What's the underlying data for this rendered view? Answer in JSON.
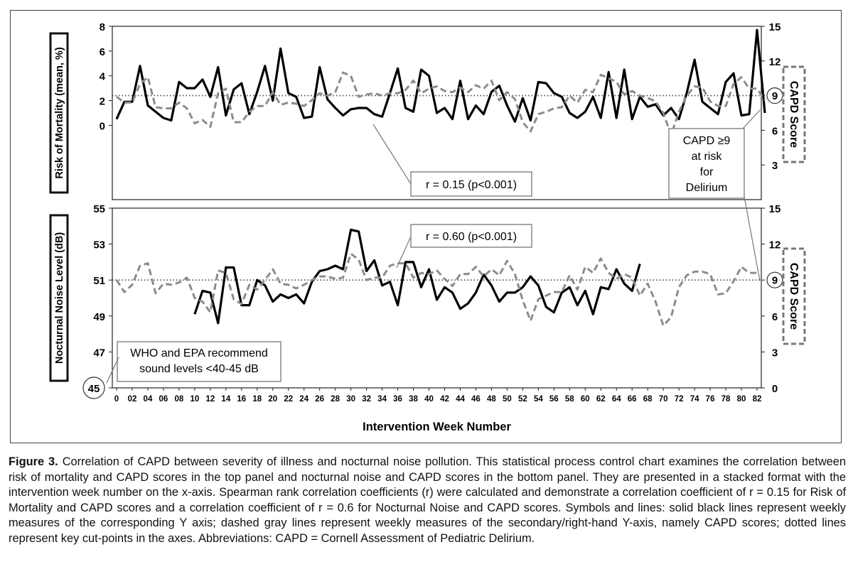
{
  "chart_data": [
    {
      "type": "line",
      "panel": "top",
      "ylabel": "Risk of Mortality (mean, %)",
      "y2label": "CAPD Score",
      "ylim": [
        -6,
        8
      ],
      "yticks": [
        "8",
        "6",
        "4",
        "2",
        "0"
      ],
      "y2lim": [
        0,
        15
      ],
      "y2ticks": [
        "15",
        "12",
        "9",
        "6",
        "3"
      ],
      "cutpoint_y2": 9,
      "cutpoint_label": "9",
      "grid": false,
      "annotations": [
        {
          "name": "correlation",
          "text": "r = 0.15 (p<0.001)"
        },
        {
          "name": "capd-note",
          "lines": [
            "CAPD ≥9",
            "at risk",
            "for",
            "Delirium"
          ]
        }
      ],
      "series": [
        {
          "axis": "left",
          "style": "solid-black",
          "x_start": 0,
          "values": [
            0.5,
            1.9,
            1.9,
            4.8,
            1.6,
            1.1,
            0.6,
            0.4,
            3.5,
            3.0,
            3.0,
            3.7,
            2.3,
            4.7,
            0.8,
            2.9,
            3.4,
            0.9,
            2.7,
            4.8,
            2.0,
            6.2,
            2.6,
            2.3,
            0.6,
            0.7,
            4.7,
            2.1,
            1.4,
            0.8,
            1.3,
            1.4,
            1.4,
            0.9,
            0.7,
            2.6,
            4.6,
            1.4,
            1.1,
            4.5,
            4.0,
            1.0,
            1.4,
            0.5,
            3.6,
            0.5,
            1.6,
            0.9,
            2.7,
            3.2,
            1.6,
            0.3,
            2.2,
            0.4,
            3.5,
            3.4,
            2.6,
            2.3,
            1.0,
            0.6,
            1.1,
            2.3,
            0.6,
            4.3,
            0.6,
            4.5,
            0.5,
            2.3,
            1.5,
            1.7,
            0.8,
            1.4,
            0.5,
            2.6,
            5.3,
            1.9,
            1.4,
            0.9,
            3.5,
            4.2,
            0.8,
            0.9,
            7.7,
            1.0
          ]
        },
        {
          "axis": "right",
          "style": "dashed-gray",
          "x_start": 0,
          "values": [
            8.9,
            8.4,
            8.4,
            10.0,
            10.6,
            8.0,
            7.9,
            7.9,
            8.4,
            7.9,
            6.6,
            6.9,
            6.3,
            9.2,
            9.6,
            6.7,
            6.7,
            7.6,
            8.1,
            8.1,
            9.3,
            8.2,
            8.4,
            8.3,
            8.1,
            8.6,
            9.2,
            9.0,
            9.3,
            11.0,
            10.7,
            8.9,
            9.1,
            9.2,
            9.0,
            9.2,
            9.2,
            9.5,
            10.3,
            9.2,
            9.6,
            9.8,
            9.4,
            9.3,
            9.7,
            9.3,
            9.9,
            9.6,
            10.3,
            8.6,
            9.3,
            8.7,
            6.7,
            5.9,
            7.4,
            7.6,
            7.9,
            8.0,
            9.0,
            8.4,
            9.5,
            9.3,
            10.8,
            10.5,
            10.2,
            9.1,
            9.4,
            9.0,
            8.8,
            8.5,
            7.5,
            5.6,
            7.6,
            9.0,
            9.8,
            9.7,
            8.5,
            8.1,
            8.1,
            10.0,
            10.6,
            9.6,
            9.6,
            8.6
          ]
        }
      ]
    },
    {
      "type": "line",
      "panel": "bottom",
      "ylabel": "Nocturnal Noise Level (dB)",
      "y2label": "CAPD Score",
      "ylim": [
        45,
        55
      ],
      "yticks": [
        "55",
        "53",
        "51",
        "49",
        "47",
        "45"
      ],
      "y2lim": [
        0,
        15
      ],
      "y2ticks": [
        "15",
        "12",
        "9",
        "6",
        "3",
        "0"
      ],
      "cutpoint_y2": 9,
      "cutpoint_label": "9",
      "min_label": "45",
      "xlabel": "Intervention Week Number",
      "xlim": [
        0,
        82
      ],
      "xticks": [
        "0",
        "02",
        "04",
        "06",
        "08",
        "10",
        "12",
        "14",
        "16",
        "18",
        "20",
        "22",
        "24",
        "26",
        "28",
        "30",
        "32",
        "34",
        "36",
        "38",
        "40",
        "42",
        "44",
        "46",
        "48",
        "50",
        "52",
        "54",
        "56",
        "58",
        "60",
        "62",
        "64",
        "66",
        "68",
        "70",
        "72",
        "74",
        "76",
        "78",
        "80",
        "82"
      ],
      "grid": false,
      "annotations": [
        {
          "name": "correlation",
          "text": "r = 0.60 (p<0.001)"
        },
        {
          "name": "who-note",
          "lines": [
            "WHO and EPA recommend",
            "sound levels <40-45 dB"
          ]
        }
      ],
      "series": [
        {
          "axis": "left",
          "style": "solid-black",
          "x_start": 10,
          "values": [
            49.1,
            50.4,
            50.3,
            48.6,
            51.7,
            51.7,
            49.6,
            49.6,
            51.0,
            50.7,
            49.8,
            50.2,
            50.0,
            50.2,
            49.7,
            50.9,
            51.5,
            51.6,
            51.8,
            51.6,
            53.8,
            53.7,
            51.5,
            52.1,
            50.7,
            50.9,
            49.6,
            52.0,
            52.0,
            50.6,
            51.6,
            49.9,
            50.6,
            50.3,
            49.4,
            49.7,
            50.3,
            51.3,
            50.7,
            49.8,
            50.3,
            50.3,
            50.6,
            51.2,
            50.7,
            49.5,
            49.2,
            50.3,
            50.6,
            49.6,
            50.4,
            49.1,
            50.6,
            50.5,
            51.6,
            50.8,
            50.4,
            51.9
          ]
        },
        {
          "axis": "right",
          "style": "dashed-gray",
          "x_start": 0,
          "values": [
            9.0,
            8.0,
            8.6,
            10.2,
            10.4,
            7.9,
            8.7,
            8.6,
            8.8,
            9.2,
            7.5,
            7.2,
            6.3,
            9.8,
            9.6,
            7.4,
            7.0,
            8.6,
            8.2,
            9.0,
            9.9,
            8.7,
            8.6,
            8.3,
            8.6,
            9.0,
            9.3,
            9.3,
            9.1,
            9.2,
            11.2,
            10.7,
            9.0,
            9.2,
            9.2,
            10.2,
            10.4,
            10.4,
            9.2,
            9.6,
            9.5,
            9.8,
            9.1,
            8.5,
            9.5,
            9.5,
            10.1,
            9.3,
            9.9,
            9.4,
            10.6,
            9.5,
            7.3,
            5.6,
            7.4,
            7.7,
            8.0,
            8.0,
            9.4,
            8.2,
            10.1,
            9.6,
            10.8,
            9.6,
            9.1,
            9.5,
            9.2,
            7.7,
            8.7,
            7.2,
            5.2,
            5.9,
            8.4,
            9.4,
            9.7,
            9.7,
            9.5,
            7.8,
            7.9,
            8.9,
            10.1,
            9.6,
            9.6
          ]
        }
      ]
    }
  ],
  "caption": {
    "label": "Figure 3.",
    "text": "Correlation of CAPD between severity of illness and nocturnal noise pollution. This statistical process control chart examines the correlation between risk of mortality and CAPD scores in the top panel and nocturnal noise and CAPD scores in the bottom panel. They are presented in a stacked format with the intervention week number on the x-axis. Spearman rank correlation coefficients (r) were calculated and demonstrate a correlation coefficient of r = 0.15 for Risk of Mortality and CAPD scores and a correlation coefficient of r = 0.6 for Nocturnal Noise and CAPD scores. Symbols and lines: solid black lines represent weekly measures of the corresponding Y axis; dashed gray lines represent weekly measures of the secondary/right-hand Y-axis, namely CAPD scores; dotted lines represent key cut-points in the axes. Abbreviations: CAPD = Cornell Assessment of Pediatric Delirium."
  }
}
